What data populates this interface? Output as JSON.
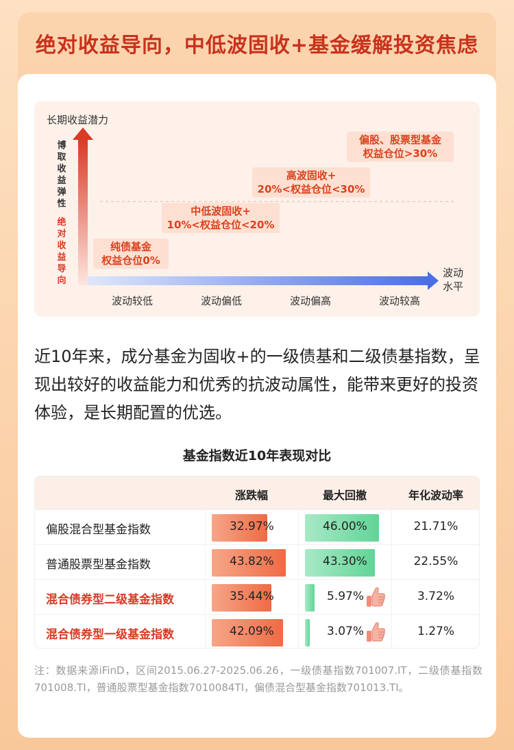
{
  "header": {
    "title": "绝对收益导向，中低波固收+基金缓解投资焦虑"
  },
  "diagram": {
    "y_title": "长期收益潜力",
    "y_vertical_1": "博取收益弹性",
    "y_vertical_2": "绝对收益导向",
    "x_title": "波动水平",
    "x_ticks": [
      "波动较低",
      "波动偏低",
      "波动偏高",
      "波动较高"
    ],
    "steps": [
      {
        "name": "纯债基金",
        "detail": "权益仓位0%"
      },
      {
        "name": "中低波固收+",
        "detail": "10%<权益仓位<20%"
      },
      {
        "name": "高波固收+",
        "detail": "20%<权益仓位<30%"
      },
      {
        "name": "偏股、股票型基金",
        "detail": "权益仓位>30%"
      }
    ],
    "colors": {
      "red_arrow": "#d93a25",
      "blue_arrow": "#4a6fe3",
      "step_bg": "#fde0d2"
    }
  },
  "paragraph": "近10年来，成分基金为固收+的一级债基和二级债基指数，呈现出较好的收益能力和优秀的抗波动属性，能带来更好的投资体验，是长期配置的优选。",
  "chart_data": {
    "type": "table",
    "title": "基金指数近10年表现对比",
    "columns": [
      "",
      "涨跌幅",
      "最大回撤",
      "年化波动率"
    ],
    "rows": [
      {
        "name": "偏股混合型基金指数",
        "change": 32.97,
        "change_label": "32.97%",
        "drawdown": 46.0,
        "drawdown_label": "46.00%",
        "volatility_label": "21.71%",
        "highlight": false,
        "thumb": false
      },
      {
        "name": "普通股票型基金指数",
        "change": 43.82,
        "change_label": "43.82%",
        "drawdown": 43.3,
        "drawdown_label": "43.30%",
        "volatility_label": "22.55%",
        "highlight": false,
        "thumb": false
      },
      {
        "name": "混合债券型二级基金指数",
        "change": 35.44,
        "change_label": "35.44%",
        "drawdown": 5.97,
        "drawdown_label": "5.97%",
        "volatility_label": "3.72%",
        "highlight": true,
        "thumb": true
      },
      {
        "name": "混合债券型一级基金指数",
        "change": 42.09,
        "change_label": "42.09%",
        "drawdown": 3.07,
        "drawdown_label": "3.07%",
        "volatility_label": "1.27%",
        "highlight": true,
        "thumb": true
      }
    ],
    "colors": {
      "change_bar": "#ef6a44",
      "drawdown_bar": "#62d497",
      "highlight_text": "#d93a25"
    }
  },
  "note": "注：数据来源iFinD，区间2015.06.27-2025.06.26，一级债基指数701007.IT，二级债基指数701008.TI，普通股票型基金指数7010084TI，偏债混合型基金指数701013.TI。"
}
